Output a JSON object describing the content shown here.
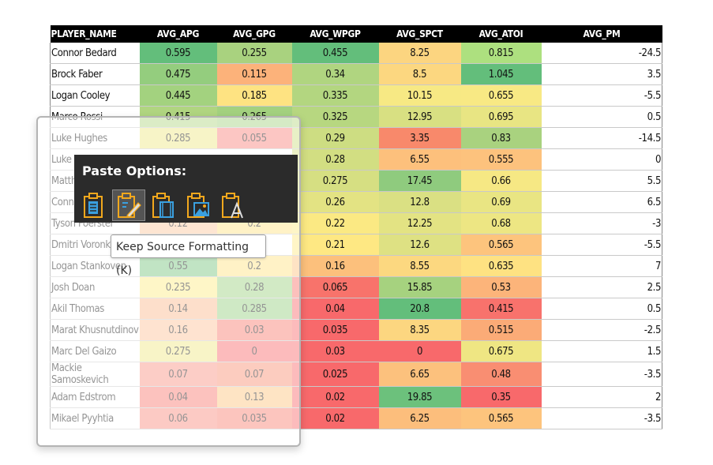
{
  "table": {
    "headers": [
      "PLAYER_NAME",
      "AVG_APG",
      "AVG_GPG",
      "AVG_WPGP",
      "AVG_SPCT",
      "AVG_ATOI",
      "AVG_PM"
    ],
    "rows": [
      {
        "name": "Connor Bedard",
        "apg": "0.595",
        "gpg": "0.255",
        "wpgp": "0.455",
        "spct": "8.25",
        "atoi": "0.815",
        "pm": "-24.5",
        "colors": [
          "#63be7b",
          "#a9d27f",
          "#63be7b",
          "#fcd580",
          "#ade07f"
        ]
      },
      {
        "name": "Brock Faber",
        "apg": "0.475",
        "gpg": "0.115",
        "wpgp": "0.34",
        "spct": "8.5",
        "atoi": "1.045",
        "pm": "3.5",
        "colors": [
          "#94cd7e",
          "#fcb27a",
          "#b0d580",
          "#fcd780",
          "#63be7b"
        ]
      },
      {
        "name": "Logan Cooley",
        "apg": "0.445",
        "gpg": "0.185",
        "wpgp": "0.335",
        "spct": "10.15",
        "atoi": "0.655",
        "pm": "-5.5",
        "colors": [
          "#a3d27f",
          "#fee382",
          "#b3d680",
          "#f7e984",
          "#f8e984"
        ]
      },
      {
        "name": "Marco Rossi",
        "apg": "0.415",
        "gpg": "0.265",
        "wpgp": "0.325",
        "spct": "12.95",
        "atoi": "0.695",
        "pm": "0.5",
        "colors": [
          "#b0d580",
          "#a3d17f",
          "#b7d780",
          "#d8e082",
          "#e8e583"
        ]
      },
      {
        "name": "Luke Hughes",
        "apg": "0.285",
        "gpg": "0.055",
        "wpgp": "0.29",
        "spct": "3.35",
        "atoi": "0.83",
        "pm": "-14.5",
        "colors": [
          "#eee683",
          "#f8827a",
          "#cddd82",
          "#f8896b",
          "#a9d27f"
        ]
      },
      {
        "name": "Luke Hughes",
        "apg": "",
        "gpg": "",
        "wpgp": "0.28",
        "spct": "6.55",
        "atoi": "0.555",
        "pm": "0",
        "colors": [
          "#ffffff",
          "#ffffff",
          "#d2de82",
          "#fdc07c",
          "#fdc27d"
        ]
      },
      {
        "name": "Matthew",
        "apg": "",
        "gpg": "",
        "wpgp": "0.275",
        "spct": "17.45",
        "atoi": "0.66",
        "pm": "5.5",
        "colors": [
          "#ffffff",
          "#ffffff",
          "#d6df82",
          "#8fcb7e",
          "#f6e884"
        ]
      },
      {
        "name": "Connor",
        "apg": "",
        "gpg": "",
        "wpgp": "0.26",
        "spct": "12.8",
        "atoi": "0.69",
        "pm": "6.5",
        "colors": [
          "#ffffff",
          "#ffffff",
          "#e3e383",
          "#dae083",
          "#e9e583"
        ]
      },
      {
        "name": "Tyson Foerster",
        "apg": "0.12",
        "gpg": "0.2",
        "wpgp": "0.22",
        "spct": "12.25",
        "atoi": "0.68",
        "pm": "-3",
        "colors": [
          "#fbc69c",
          "#fee282",
          "#fbe983",
          "#e3e383",
          "#ede683"
        ]
      },
      {
        "name": "Dmitri Voronkov",
        "apg": "",
        "gpg": "",
        "wpgp": "0.21",
        "spct": "12.6",
        "atoi": "0.565",
        "pm": "-5.5",
        "colors": [
          "#ffffff",
          "#ffffff",
          "#fee883",
          "#dee183",
          "#fdc47d"
        ]
      },
      {
        "name": "Logan Stankoven",
        "apg": "0.55",
        "gpg": "0.2",
        "wpgp": "0.16",
        "spct": "8.55",
        "atoi": "0.635",
        "pm": "7",
        "colors": [
          "#75c37c",
          "#fee382",
          "#fcc07c",
          "#fcd880",
          "#fee282"
        ]
      },
      {
        "name": "Josh Doan",
        "apg": "0.235",
        "gpg": "0.28",
        "wpgp": "0.065",
        "spct": "15.85",
        "atoi": "0.53",
        "pm": "2.5",
        "colors": [
          "#fdeb84",
          "#9bd07f",
          "#f8736b",
          "#a6d27f",
          "#fcb47a"
        ]
      },
      {
        "name": "Akil Thomas",
        "apg": "0.14",
        "gpg": "0.285",
        "wpgp": "0.04",
        "spct": "20.8",
        "atoi": "0.415",
        "pm": "0.5",
        "colors": [
          "#fbb98c",
          "#96ce7e",
          "#f8696b",
          "#63be7b",
          "#f8726c"
        ]
      },
      {
        "name": "Marat Khusnutdinov",
        "apg": "0.16",
        "gpg": "0.03",
        "wpgp": "0.035",
        "spct": "8.35",
        "atoi": "0.515",
        "pm": "-2.5",
        "colors": [
          "#fcc197",
          "#f97b6e",
          "#f8696b",
          "#fcd680",
          "#fbab77"
        ]
      },
      {
        "name": "Marc Del Gaizo",
        "apg": "0.275",
        "gpg": "0",
        "wpgp": "0.03",
        "spct": "0",
        "atoi": "0.675",
        "pm": "1.5",
        "colors": [
          "#f0e784",
          "#f8696b",
          "#f8696b",
          "#f8696b",
          "#efe683"
        ]
      },
      {
        "name": "Mackie Samoskevich",
        "apg": "0.07",
        "gpg": "0.07",
        "wpgp": "0.025",
        "spct": "6.65",
        "atoi": "0.48",
        "pm": "-3.5",
        "colors": [
          "#f99082",
          "#f98e72",
          "#f8696b",
          "#fcc17d",
          "#f98e72"
        ]
      },
      {
        "name": "Adam Edstrom",
        "apg": "0.04",
        "gpg": "0.13",
        "wpgp": "0.02",
        "spct": "19.85",
        "atoi": "0.35",
        "pm": "2",
        "colors": [
          "#f8796f",
          "#fdc37d",
          "#f8696b",
          "#6cc17c",
          "#f8696b"
        ]
      },
      {
        "name": "Mikael Pyyhtia",
        "apg": "0.06",
        "gpg": "0.035",
        "wpgp": "0.02",
        "spct": "6.25",
        "atoi": "0.565",
        "pm": "-3.5",
        "colors": [
          "#f98a7d",
          "#f97e6f",
          "#f8696b",
          "#fcbe7c",
          "#fdc47d"
        ]
      }
    ]
  },
  "paste_menu": {
    "title": "Paste Options:",
    "icons": [
      "paste-icon",
      "keep-source-formatting-icon",
      "paste-formatting-icon",
      "paste-picture-icon",
      "paste-text-only-icon"
    ],
    "accent": "#f2a81d",
    "tooltip": "Keep Source Formatting (K)"
  }
}
